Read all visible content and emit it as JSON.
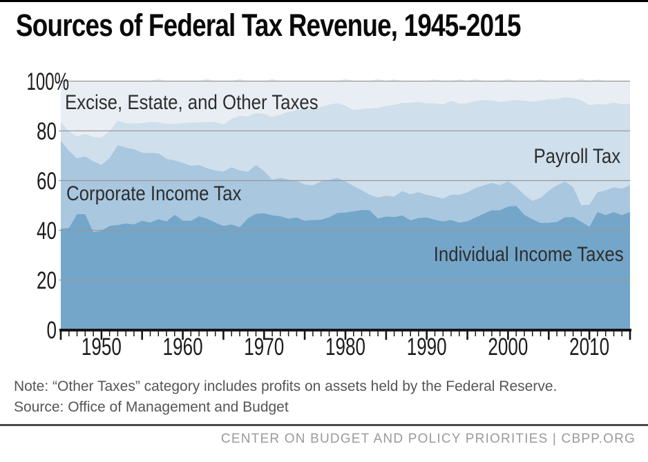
{
  "title": "Sources of Federal Tax Revenue, 1945-2015",
  "annotations": {
    "note": "Note: “Other Taxes” category includes profits on assets held by the Federal Reserve.",
    "source": "Source: Office of Management and Budget",
    "footer": "CENTER ON BUDGET AND POLICY PRIORITIES | CBPP.ORG"
  },
  "colors": {
    "top_accent_bar": "#000000",
    "gridline": "#999999",
    "axis": "#151515",
    "tick_label": "#1c1c1c",
    "area_label_text": "#2d2d2d",
    "note_text": "#555555",
    "footer_line": "#4a4a4a",
    "footer_text": "#9a9a9a",
    "background": "#ffffff"
  },
  "chart_data": {
    "type": "area",
    "stacked": true,
    "unit": "percent of total federal revenue",
    "grid": true,
    "xlim": [
      1945,
      2015
    ],
    "ylim": [
      0,
      100
    ],
    "x_tick_label_years": [
      1950,
      1960,
      1970,
      1980,
      1990,
      2000,
      2010
    ],
    "minor_tick_step": 1,
    "major_tick_step": 5,
    "y_ticks": [
      {
        "value": 0,
        "label": "0"
      },
      {
        "value": 20,
        "label": "20"
      },
      {
        "value": 40,
        "label": "40"
      },
      {
        "value": 60,
        "label": "60"
      },
      {
        "value": 80,
        "label": "80"
      },
      {
        "value": 100,
        "label": "100%"
      }
    ],
    "x": [
      1945,
      1946,
      1947,
      1948,
      1949,
      1950,
      1951,
      1952,
      1953,
      1954,
      1955,
      1956,
      1957,
      1958,
      1959,
      1960,
      1961,
      1962,
      1963,
      1964,
      1965,
      1966,
      1967,
      1968,
      1969,
      1970,
      1971,
      1972,
      1973,
      1974,
      1975,
      1976,
      1977,
      1978,
      1979,
      1980,
      1981,
      1982,
      1983,
      1984,
      1985,
      1986,
      1987,
      1988,
      1989,
      1990,
      1991,
      1992,
      1993,
      1994,
      1995,
      1996,
      1997,
      1998,
      1999,
      2000,
      2001,
      2002,
      2003,
      2004,
      2005,
      2006,
      2007,
      2008,
      2009,
      2010,
      2011,
      2012,
      2013,
      2014,
      2015
    ],
    "series": [
      {
        "name": "Individual Income Taxes",
        "color": "#74a6ca",
        "values": [
          40.7,
          41.0,
          46.6,
          46.5,
          39.4,
          39.9,
          41.8,
          42.2,
          42.8,
          42.4,
          43.9,
          43.2,
          44.5,
          43.6,
          46.3,
          44.0,
          43.8,
          45.7,
          44.7,
          43.2,
          41.8,
          42.4,
          41.3,
          44.9,
          46.7,
          46.9,
          46.1,
          45.7,
          44.7,
          45.2,
          43.9,
          44.2,
          44.3,
          45.3,
          47.0,
          47.2,
          47.7,
          48.2,
          48.1,
          44.8,
          45.6,
          45.4,
          46.0,
          44.1,
          45.0,
          45.2,
          44.3,
          43.6,
          44.2,
          43.1,
          43.7,
          45.2,
          46.7,
          48.1,
          48.1,
          49.6,
          49.9,
          46.3,
          44.5,
          43.0,
          43.1,
          43.4,
          45.3,
          45.4,
          43.5,
          41.5,
          47.4,
          46.2,
          47.4,
          46.2,
          47.4
        ]
      },
      {
        "name": "Corporate Income Tax",
        "color": "#a9c7df",
        "values": [
          35.4,
          31.0,
          22.4,
          23.3,
          28.4,
          26.5,
          27.3,
          32.1,
          30.5,
          30.3,
          27.3,
          28.0,
          26.5,
          25.2,
          21.8,
          23.2,
          22.2,
          20.6,
          20.3,
          20.9,
          21.8,
          23.0,
          22.8,
          18.7,
          19.6,
          17.0,
          14.3,
          15.5,
          15.7,
          14.7,
          14.6,
          13.9,
          15.4,
          15.0,
          14.2,
          12.5,
          10.2,
          8.0,
          6.2,
          8.5,
          8.4,
          8.2,
          9.8,
          10.4,
          10.4,
          9.1,
          9.3,
          9.2,
          10.2,
          11.2,
          11.6,
          11.8,
          11.5,
          11.0,
          10.1,
          10.2,
          7.6,
          8.0,
          7.4,
          10.1,
          12.9,
          14.7,
          14.4,
          12.1,
          6.6,
          8.9,
          7.9,
          9.9,
          9.9,
          10.6,
          10.8
        ]
      },
      {
        "name": "Payroll Tax",
        "color": "#cfdfeb",
        "values": [
          7.6,
          7.9,
          8.8,
          9.1,
          9.7,
          11.0,
          10.8,
          9.8,
          9.8,
          10.3,
          12.0,
          12.5,
          12.5,
          14.1,
          14.8,
          15.9,
          17.4,
          17.1,
          18.6,
          19.5,
          19.0,
          19.5,
          22.0,
          22.2,
          20.9,
          23.0,
          25.3,
          25.4,
          27.3,
          28.5,
          30.3,
          30.5,
          29.9,
          30.3,
          30.0,
          30.5,
          30.5,
          32.6,
          34.8,
          35.9,
          36.1,
          36.9,
          35.5,
          36.8,
          36.3,
          36.8,
          37.5,
          37.9,
          37.8,
          36.7,
          35.8,
          35.1,
          34.2,
          33.2,
          33.5,
          32.2,
          34.9,
          37.8,
          40.0,
          39.0,
          36.9,
          34.8,
          33.9,
          35.7,
          42.3,
          40.0,
          35.5,
          34.5,
          34.2,
          33.9,
          32.8
        ]
      },
      {
        "name": "Excise, Estate, and Other Taxes",
        "color": "#e9eef4",
        "values": [
          16.3,
          20.1,
          22.2,
          21.1,
          22.5,
          22.6,
          20.1,
          15.9,
          16.9,
          17.0,
          16.8,
          16.3,
          17.5,
          17.1,
          17.1,
          16.9,
          16.6,
          16.6,
          17.4,
          16.4,
          17.4,
          15.1,
          14.9,
          14.2,
          12.8,
          13.1,
          15.3,
          13.4,
          12.3,
          11.6,
          11.2,
          11.4,
          10.4,
          9.4,
          8.8,
          10.8,
          11.6,
          11.2,
          10.9,
          11.8,
          9.9,
          10.3,
          8.7,
          8.7,
          8.3,
          8.9,
          9.7,
          9.3,
          7.8,
          9.8,
          8.9,
          8.9,
          7.6,
          7.7,
          8.3,
          9.0,
          7.6,
          7.9,
          8.1,
          8.7,
          7.1,
          7.1,
          6.4,
          6.8,
          8.8,
          9.6,
          10.0,
          9.4,
          8.5,
          9.3,
          9.0
        ]
      }
    ]
  }
}
